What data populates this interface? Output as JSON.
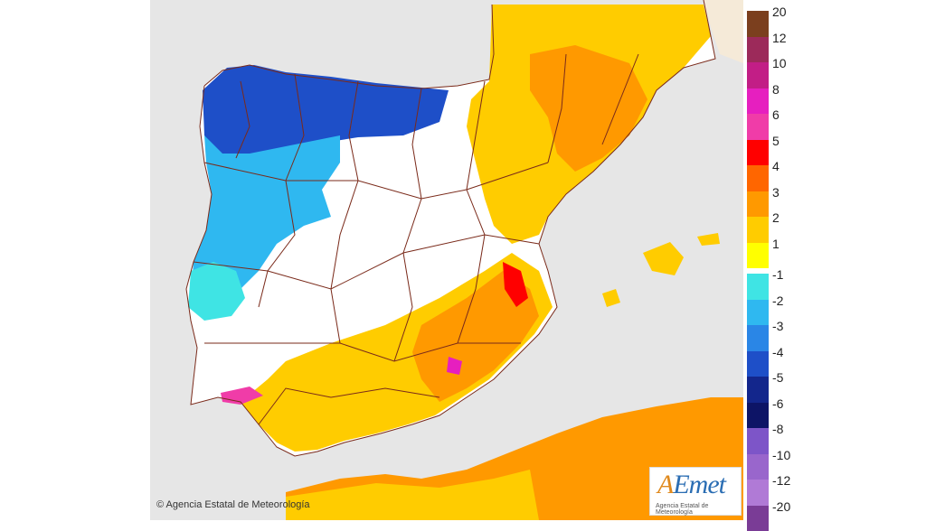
{
  "footer": {
    "copyright": "© Agencia Estatal de Meteorología"
  },
  "logo": {
    "brand_a": "A",
    "brand_rest": "Emet",
    "subtitle": "Agencia Estatal de Meteorología"
  },
  "legend": {
    "items": [
      {
        "label": "20",
        "color": "#7b3f1e"
      },
      {
        "label": "12",
        "color": "#9c2a5a"
      },
      {
        "label": "10",
        "color": "#c21e86"
      },
      {
        "label": "8",
        "color": "#e61fbf"
      },
      {
        "label": "6",
        "color": "#f03ca8"
      },
      {
        "label": "5",
        "color": "#ff0000"
      },
      {
        "label": "4",
        "color": "#ff6600"
      },
      {
        "label": "3",
        "color": "#ff9900"
      },
      {
        "label": "2",
        "color": "#ffcc00"
      },
      {
        "label": "1",
        "color": "#ffff00"
      },
      {
        "label": "-1",
        "color": "#3fe4e4"
      },
      {
        "label": "-2",
        "color": "#2fb8f0"
      },
      {
        "label": "-3",
        "color": "#2a86e6"
      },
      {
        "label": "-4",
        "color": "#1e4fc8"
      },
      {
        "label": "-5",
        "color": "#13268c"
      },
      {
        "label": "-6",
        "color": "#0d1466"
      },
      {
        "label": "-8",
        "color": "#7d55c8"
      },
      {
        "label": "-10",
        "color": "#9966cc"
      },
      {
        "label": "-12",
        "color": "#b07ad6"
      },
      {
        "label": "-20",
        "color": "#7a3c96"
      }
    ]
  },
  "colors": {
    "sea": "#e6e6e6",
    "land_neutral": "#ffffff",
    "border": "#7a2a1a",
    "france": "#f5ead8"
  }
}
